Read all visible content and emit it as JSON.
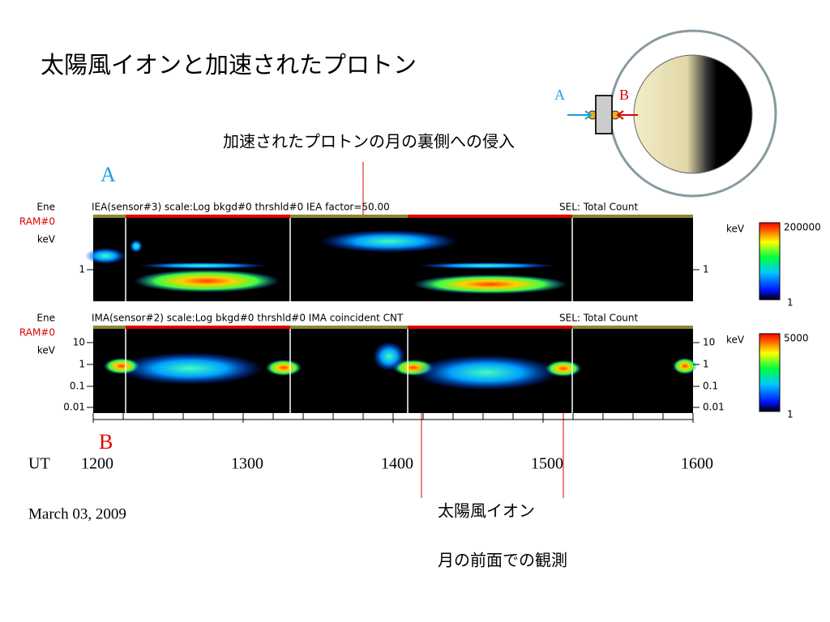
{
  "title": "太陽風イオンと加速されたプロトン",
  "annotation_top": "加速されたプロトンの月の裏側への侵入",
  "label_a": "A",
  "label_b": "B",
  "diagram": {
    "a": "A",
    "b": "B"
  },
  "panels": [
    {
      "ene": "Ene",
      "ram": "RAM#0",
      "kev": "keV",
      "info": "IEA(sensor#3) scale:Log  bkgd#0 thrshld#0  IEA factor=50.00",
      "sel": "SEL: Total Count",
      "yticks": [
        "1"
      ],
      "colorbar": {
        "unit": "keV",
        "max": "200000",
        "min": "1"
      }
    },
    {
      "ene": "Ene",
      "ram": "RAM#0",
      "kev": "keV",
      "info": "IMA(sensor#2) scale:Log  bkgd#0 thrshld#0  IMA coincident CNT",
      "sel": "SEL: Total Count",
      "yticks": [
        "10",
        "1",
        "0.1",
        "0.01"
      ],
      "colorbar": {
        "unit": "keV",
        "max": "5000",
        "min": "1"
      }
    }
  ],
  "xaxis": {
    "ut": "UT",
    "ticks": [
      "1200",
      "1300",
      "1400",
      "1500",
      "1600"
    ]
  },
  "date": "March 03, 2009",
  "annotation_bottom": [
    "太陽風イオン",
    "月の前面での観測"
  ]
}
